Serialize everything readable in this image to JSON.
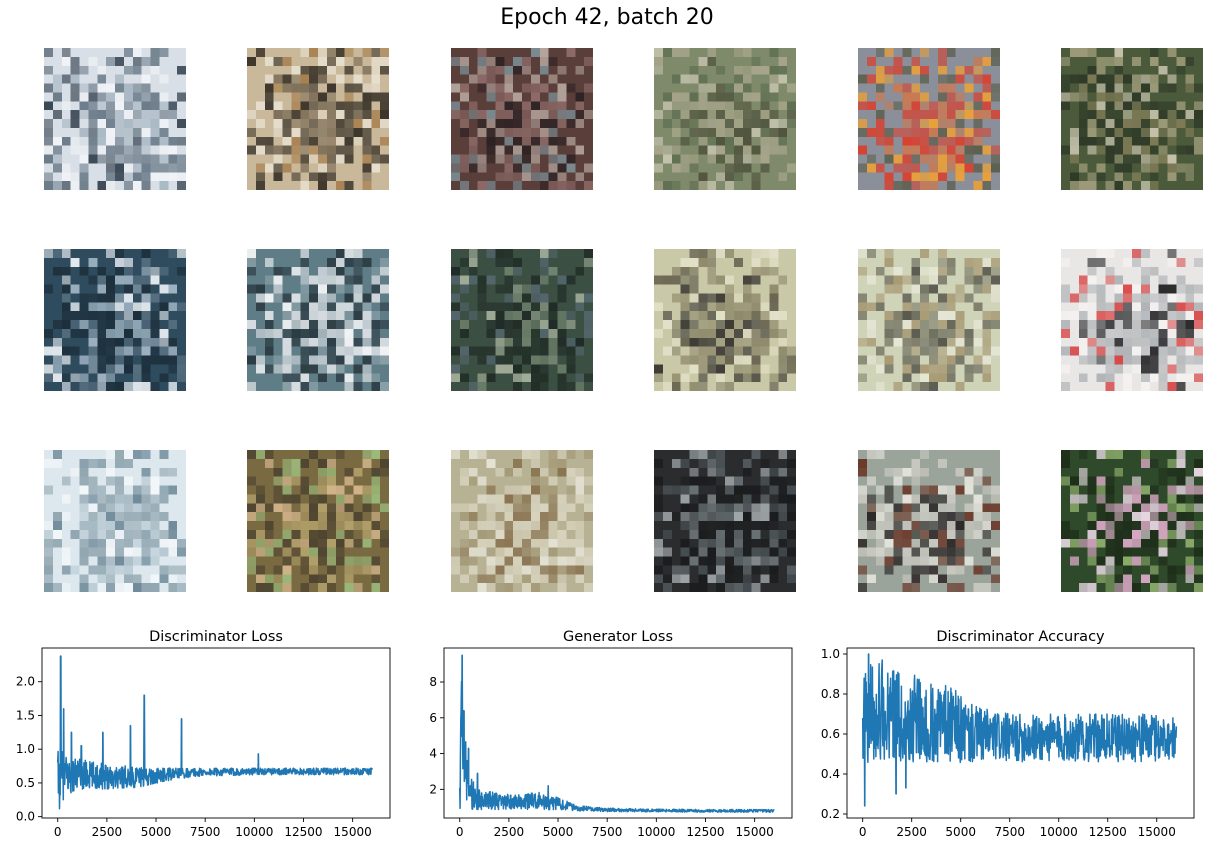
{
  "suptitle": "Epoch 42, batch 20",
  "samples": [
    {
      "row": 0,
      "col": 0,
      "colors": [
        "#d8dfe6",
        "#a9b8c4",
        "#6a7a88",
        "#f0f3f6",
        "#394654"
      ]
    },
    {
      "row": 0,
      "col": 1,
      "colors": [
        "#c9b89a",
        "#7d6e58",
        "#3b342a",
        "#e7dfcf",
        "#a8804f"
      ]
    },
    {
      "row": 0,
      "col": 2,
      "colors": [
        "#5a3e3a",
        "#2c2224",
        "#8e6b68",
        "#7a8a90",
        "#b4a49c"
      ]
    },
    {
      "row": 0,
      "col": 3,
      "colors": [
        "#7f8a6a",
        "#4f533d",
        "#a7a58b",
        "#5f6f52",
        "#c4c2ae"
      ]
    },
    {
      "row": 0,
      "col": 4,
      "colors": [
        "#8a8f9a",
        "#c97a52",
        "#d9402e",
        "#e8a03a",
        "#5b5f4d"
      ]
    },
    {
      "row": 0,
      "col": 5,
      "colors": [
        "#4a5a3b",
        "#7e7a56",
        "#2f3a28",
        "#9c9a78",
        "#c8c4ae"
      ]
    },
    {
      "row": 1,
      "col": 0,
      "colors": [
        "#2f4b5e",
        "#9eb3c2",
        "#1d2f3c",
        "#e2e8ee",
        "#566f80"
      ]
    },
    {
      "row": 1,
      "col": 1,
      "colors": [
        "#5f7d86",
        "#d8dde2",
        "#2c3c44",
        "#8aa0a8",
        "#f0f2f4"
      ]
    },
    {
      "row": 1,
      "col": 2,
      "colors": [
        "#3b4f43",
        "#6d7f6a",
        "#202c26",
        "#a1ad98",
        "#54666c"
      ]
    },
    {
      "row": 1,
      "col": 3,
      "colors": [
        "#c9c9a8",
        "#3c3a34",
        "#8f8a6c",
        "#e2e0c8",
        "#6a6652"
      ]
    },
    {
      "row": 1,
      "col": 4,
      "colors": [
        "#cfd3b8",
        "#5a5a4e",
        "#a89a74",
        "#e6e6d6",
        "#7d7d6a"
      ]
    },
    {
      "row": 1,
      "col": 5,
      "colors": [
        "#e9e6e6",
        "#2a2a2c",
        "#b0b4b6",
        "#f6f2f2",
        "#d84a4a"
      ]
    },
    {
      "row": 2,
      "col": 0,
      "colors": [
        "#dde8ee",
        "#b6c8d2",
        "#8fa4ae",
        "#f2f6f8",
        "#6f8a9a"
      ]
    },
    {
      "row": 2,
      "col": 1,
      "colors": [
        "#7a6a42",
        "#b2a06a",
        "#4e4430",
        "#9aba7a",
        "#d2b48a"
      ]
    },
    {
      "row": 2,
      "col": 2,
      "colors": [
        "#b8b294",
        "#8a7452",
        "#d6d2bc",
        "#a49a78",
        "#e4e2d4"
      ]
    },
    {
      "row": 2,
      "col": 3,
      "colors": [
        "#2a2c2e",
        "#6c7478",
        "#1a1c1e",
        "#a2a8aa",
        "#4a5256"
      ]
    },
    {
      "row": 2,
      "col": 4,
      "colors": [
        "#9aa49a",
        "#2e2a2a",
        "#c8c8c0",
        "#6b3a2a",
        "#e4e4dc"
      ]
    },
    {
      "row": 2,
      "col": 5,
      "colors": [
        "#2f4a2a",
        "#d6a6c2",
        "#1e2e1a",
        "#8aaa6a",
        "#e8d8e4"
      ]
    }
  ],
  "chart_data": [
    {
      "type": "line",
      "title": "Discriminator Loss",
      "xlabel": "",
      "ylabel": "",
      "xlim": [
        -800,
        16900
      ],
      "ylim": [
        -0.02,
        2.5
      ],
      "xticks": [
        0,
        2500,
        5000,
        7500,
        10000,
        12500,
        15000
      ],
      "yticks": [
        0.0,
        0.5,
        1.0,
        1.5,
        2.0
      ],
      "ytick_labels": [
        "0.0",
        "0.5",
        "1.0",
        "1.5",
        "2.0"
      ],
      "color": "#1f77b4",
      "series_outline": {
        "x": [
          0,
          100,
          250,
          500,
          1000,
          2000,
          3000,
          4000,
          5000,
          6000,
          7500,
          10000,
          12500,
          15000,
          16000
        ],
        "mid": [
          0.55,
          0.6,
          0.62,
          0.6,
          0.62,
          0.6,
          0.6,
          0.58,
          0.6,
          0.64,
          0.66,
          0.67,
          0.67,
          0.67,
          0.67
        ],
        "amp": [
          0.4,
          0.5,
          0.38,
          0.3,
          0.25,
          0.2,
          0.18,
          0.15,
          0.12,
          0.08,
          0.06,
          0.05,
          0.05,
          0.05,
          0.05
        ]
      },
      "spikes": [
        {
          "x": 150,
          "y": 2.38
        },
        {
          "x": 300,
          "y": 1.6
        },
        {
          "x": 700,
          "y": 1.25
        },
        {
          "x": 1200,
          "y": 1.05
        },
        {
          "x": 2300,
          "y": 1.25
        },
        {
          "x": 3700,
          "y": 1.35
        },
        {
          "x": 4400,
          "y": 1.8
        },
        {
          "x": 6300,
          "y": 1.45
        },
        {
          "x": 10200,
          "y": 0.93
        }
      ]
    },
    {
      "type": "line",
      "title": "Generator Loss",
      "xlabel": "",
      "ylabel": "",
      "xlim": [
        -800,
        16900
      ],
      "ylim": [
        0.4,
        9.9
      ],
      "xticks": [
        0,
        2500,
        5000,
        7500,
        10000,
        12500,
        15000
      ],
      "yticks": [
        2,
        4,
        6,
        8
      ],
      "ytick_labels": [
        "2",
        "4",
        "6",
        "8"
      ],
      "color": "#1f77b4",
      "series_outline": {
        "x": [
          0,
          100,
          200,
          400,
          700,
          1000,
          2000,
          3000,
          4000,
          5000,
          6000,
          7500,
          10000,
          12500,
          16000
        ],
        "mid": [
          1.8,
          5.5,
          3.5,
          2.2,
          1.6,
          1.45,
          1.3,
          1.3,
          1.35,
          1.2,
          0.95,
          0.85,
          0.82,
          0.8,
          0.8
        ],
        "amp": [
          1.2,
          3.5,
          2.5,
          1.2,
          0.8,
          0.6,
          0.45,
          0.4,
          0.5,
          0.35,
          0.15,
          0.1,
          0.08,
          0.08,
          0.08
        ]
      },
      "spikes": [
        {
          "x": 120,
          "y": 9.5
        },
        {
          "x": 220,
          "y": 6.4
        },
        {
          "x": 450,
          "y": 4.3
        },
        {
          "x": 900,
          "y": 2.9
        },
        {
          "x": 4500,
          "y": 2.2
        }
      ]
    },
    {
      "type": "line",
      "title": "Discriminator Accuracy",
      "xlabel": "",
      "ylabel": "",
      "xlim": [
        -800,
        16900
      ],
      "ylim": [
        0.18,
        1.03
      ],
      "xticks": [
        0,
        2500,
        5000,
        7500,
        10000,
        12500,
        15000
      ],
      "yticks": [
        0.2,
        0.4,
        0.6,
        0.8,
        1.0
      ],
      "ytick_labels": [
        "0.2",
        "0.4",
        "0.6",
        "0.8",
        "1.0"
      ],
      "color": "#1f77b4",
      "series_outline": {
        "x": [
          0,
          500,
          1500,
          2500,
          3500,
          4500,
          5500,
          6500,
          7500,
          10000,
          12500,
          15000,
          16000
        ],
        "mid": [
          0.72,
          0.72,
          0.7,
          0.68,
          0.66,
          0.64,
          0.6,
          0.59,
          0.58,
          0.58,
          0.58,
          0.58,
          0.58
        ],
        "amp": [
          0.28,
          0.25,
          0.23,
          0.22,
          0.2,
          0.2,
          0.15,
          0.13,
          0.12,
          0.12,
          0.12,
          0.12,
          0.1
        ]
      },
      "spikes": [
        {
          "x": 100,
          "y": 0.24
        },
        {
          "x": 300,
          "y": 1.0
        },
        {
          "x": 1700,
          "y": 0.3
        },
        {
          "x": 2200,
          "y": 0.33
        },
        {
          "x": 1000,
          "y": 0.97
        }
      ]
    }
  ]
}
